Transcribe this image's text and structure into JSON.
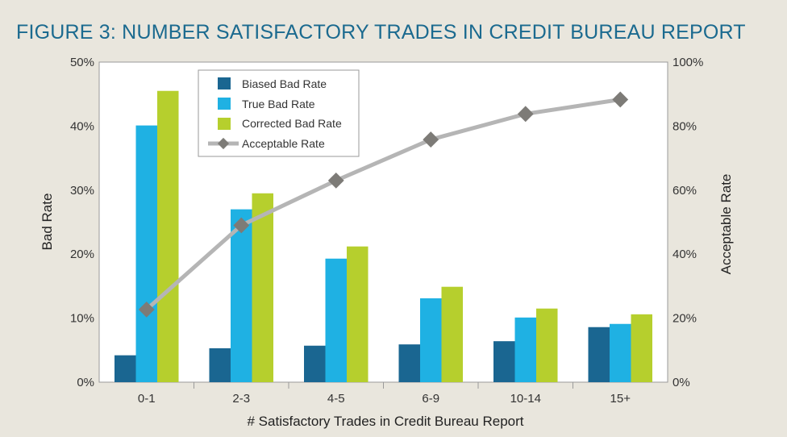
{
  "chart_data": {
    "type": "bar",
    "title": "FIGURE 3: NUMBER SATISFACTORY TRADES IN CREDIT BUREAU REPORT",
    "xlabel": "# Satisfactory Trades in Credit Bureau Report",
    "ylabel": "Bad Rate",
    "y2label": "Acceptable Rate",
    "ylim": [
      0,
      50
    ],
    "y2lim": [
      0,
      100
    ],
    "yticks": [
      "0%",
      "10%",
      "20%",
      "30%",
      "40%",
      "50%"
    ],
    "y2ticks": [
      "0%",
      "20%",
      "40%",
      "60%",
      "80%",
      "100%"
    ],
    "categories": [
      "0-1",
      "2-3",
      "4-5",
      "6-9",
      "10-14",
      "15+"
    ],
    "series": [
      {
        "name": "Biased Bad Rate",
        "type": "bar",
        "axis": "left",
        "color": "#1a6691",
        "values": [
          4.2,
          5.3,
          5.7,
          5.9,
          6.4,
          8.6
        ]
      },
      {
        "name": "True Bad Rate",
        "type": "bar",
        "axis": "left",
        "color": "#1fb1e3",
        "values": [
          40.1,
          27.0,
          19.3,
          13.1,
          10.1,
          9.1
        ]
      },
      {
        "name": "Corrected Bad Rate",
        "type": "bar",
        "axis": "left",
        "color": "#b6cf2d",
        "values": [
          45.5,
          29.5,
          21.2,
          14.9,
          11.5,
          10.6
        ]
      },
      {
        "name": "Acceptable Rate",
        "type": "line",
        "axis": "right",
        "color": "#b5b5b5",
        "marker_color": "#7d7b77",
        "values": [
          22.7,
          49.0,
          63.0,
          75.8,
          83.8,
          88.3
        ]
      }
    ],
    "legend_position": "top-left",
    "grid": false
  }
}
